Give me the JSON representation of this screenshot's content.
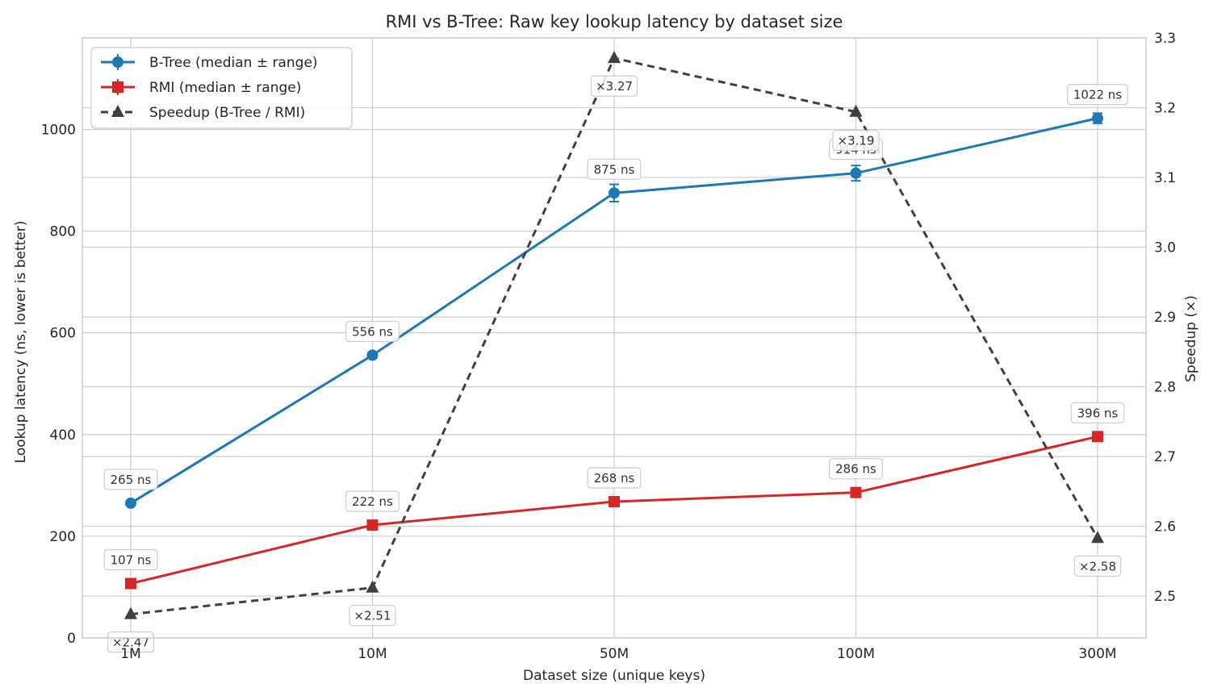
{
  "chart_data": {
    "type": "line",
    "title": "RMI vs B-Tree: Raw key lookup latency by dataset size",
    "xlabel": "Dataset size (unique keys)",
    "ylabel": "Lookup latency (ns, lower is better)",
    "y2label": "Speedup (×)",
    "categories": [
      "1M",
      "10M",
      "50M",
      "100M",
      "300M"
    ],
    "ylim": [
      0,
      1180
    ],
    "yticks": [
      0,
      200,
      400,
      600,
      800,
      1000
    ],
    "y2lim": [
      2.44,
      3.3
    ],
    "y2ticks": [
      "2.5",
      "2.6",
      "2.7",
      "2.8",
      "2.9",
      "3.0",
      "3.1",
      "3.2",
      "3.3"
    ],
    "grid": true,
    "legend_position": "upper-left",
    "series": [
      {
        "name": "B-Tree (median ± range)",
        "axis": "left",
        "color": "#1f77b4",
        "marker": "circle",
        "linestyle": "solid",
        "values": [
          265,
          556,
          875,
          914,
          1022
        ],
        "err_low": [
          261,
          550,
          858,
          899,
          1012
        ],
        "err_high": [
          269,
          562,
          892,
          929,
          1032
        ],
        "labels": [
          "265 ns",
          "556 ns",
          "875 ns",
          "914 ns",
          "1022 ns"
        ]
      },
      {
        "name": "RMI (median ± range)",
        "axis": "left",
        "color": "#d62728",
        "marker": "square",
        "linestyle": "solid",
        "values": [
          107,
          222,
          268,
          286,
          396
        ],
        "err_low": [
          104,
          218,
          264,
          282,
          391
        ],
        "err_high": [
          110,
          226,
          272,
          290,
          401
        ],
        "labels": [
          "107 ns",
          "222 ns",
          "268 ns",
          "286 ns",
          "396 ns"
        ]
      },
      {
        "name": "Speedup (B-Tree / RMI)",
        "axis": "right",
        "color": "#404040",
        "marker": "triangle",
        "linestyle": "dashed",
        "values": [
          2.474,
          2.512,
          3.271,
          3.194,
          2.583
        ],
        "labels": [
          "×2.47",
          "×2.51",
          "×3.27",
          "×3.19",
          "×2.58"
        ]
      }
    ]
  }
}
